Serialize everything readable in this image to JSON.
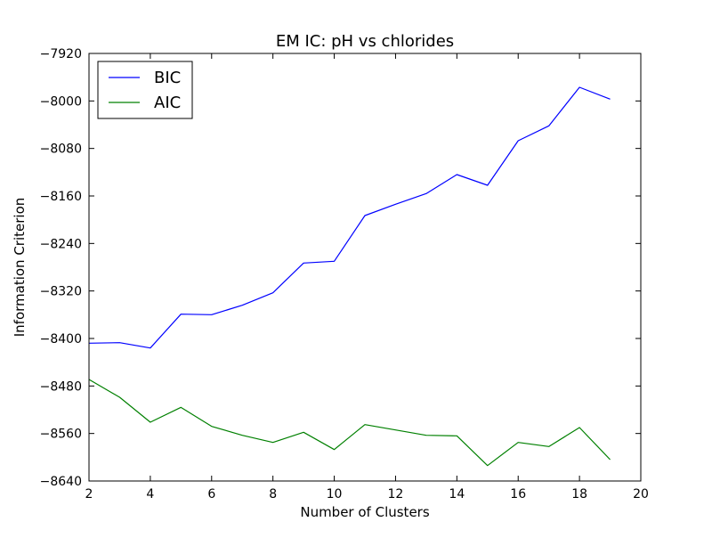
{
  "chart_data": {
    "type": "line",
    "title": "EM IC: pH vs chlorides",
    "xlabel": "Number of Clusters",
    "ylabel": "Information Criterion",
    "xlim": [
      2,
      20
    ],
    "ylim": [
      -8640,
      -7920
    ],
    "x_ticks": [
      2,
      4,
      6,
      8,
      10,
      12,
      14,
      16,
      18,
      20
    ],
    "y_ticks": [
      -7920,
      -8000,
      -8080,
      -8160,
      -8240,
      -8320,
      -8400,
      -8480,
      -8560,
      -8640
    ],
    "x_tick_labels": [
      "2",
      "4",
      "6",
      "8",
      "10",
      "12",
      "14",
      "16",
      "18",
      "20"
    ],
    "y_tick_labels": [
      "−7920",
      "−8000",
      "−8080",
      "−8160",
      "−8240",
      "−8320",
      "−8400",
      "−8480",
      "−8560",
      "−8640"
    ],
    "legend_position": "top-left",
    "grid": false,
    "x": [
      2,
      3,
      4,
      5,
      6,
      7,
      8,
      9,
      10,
      11,
      12,
      13,
      14,
      15,
      16,
      17,
      18,
      19
    ],
    "series": [
      {
        "name": "BIC",
        "color": "#0000ff",
        "values": [
          -8408,
          -8407,
          -8416,
          -8359,
          -8360,
          -8344,
          -8323,
          -8273,
          -8270,
          -8193,
          -8174,
          -8156,
          -8124,
          -8142,
          -8067,
          -8042,
          -7977,
          -7997
        ]
      },
      {
        "name": "AIC",
        "color": "#008000",
        "values": [
          -8469,
          -8499,
          -8541,
          -8516,
          -8548,
          -8563,
          -8575,
          -8558,
          -8587,
          -8545,
          -8554,
          -8563,
          -8564,
          -8614,
          -8575,
          -8582,
          -8550,
          -8604
        ]
      }
    ]
  }
}
